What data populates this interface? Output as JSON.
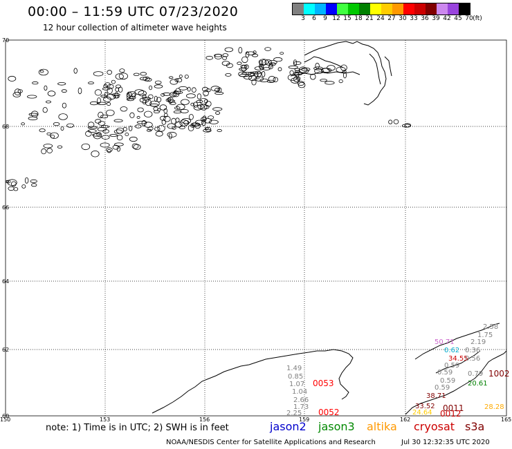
{
  "header": {
    "title": "00:00 – 11:59 UTC 07/23/2020",
    "subtitle": "12 hour collection of altimeter wave heights"
  },
  "legend": {
    "unit": "(ft)",
    "colors": [
      "#808080",
      "#00ffff",
      "#00b4ff",
      "#0000ff",
      "#40ff40",
      "#00c800",
      "#008000",
      "#ffff00",
      "#ffcc00",
      "#ff9900",
      "#ff0000",
      "#cc0000",
      "#800000",
      "#cc88ee",
      "#9944dd",
      "#000000"
    ],
    "labels": [
      "3",
      "6",
      "9",
      "12",
      "15",
      "18",
      "21",
      "24",
      "27",
      "30",
      "33",
      "36",
      "39",
      "42",
      "45",
      "70"
    ]
  },
  "axes": {
    "lat_labels": [
      "70",
      "68",
      "66",
      "64",
      "62",
      "60"
    ],
    "lon_labels": [
      "150",
      "153",
      "156",
      "159",
      "162",
      "165"
    ]
  },
  "observations": [
    {
      "text": "2.58",
      "color": "#808080"
    },
    {
      "text": "1.75",
      "color": "#808080"
    },
    {
      "text": "50.71",
      "color": "#cc66cc"
    },
    {
      "text": "2.19",
      "color": "#808080"
    },
    {
      "text": "0.62",
      "color": "#00aacc"
    },
    {
      "text": "0.36",
      "color": "#808080"
    },
    {
      "text": "34.55",
      "color": "#cc0000"
    },
    {
      "text": "0.59",
      "color": "#808080"
    },
    {
      "text": "0.56",
      "color": "#808080"
    },
    {
      "text": "0.59",
      "color": "#808080"
    },
    {
      "text": "0.79",
      "color": "#808080"
    },
    {
      "text": "1002",
      "color": "#800000"
    },
    {
      "text": "0.59",
      "color": "#808080"
    },
    {
      "text": "20.61",
      "color": "#008000"
    },
    {
      "text": "0.59",
      "color": "#808080"
    },
    {
      "text": "38.71",
      "color": "#800000"
    },
    {
      "text": "1.49",
      "color": "#808080"
    },
    {
      "text": "0.85",
      "color": "#808080"
    },
    {
      "text": "1.07",
      "color": "#808080"
    },
    {
      "text": "0053",
      "color": "#ff0000"
    },
    {
      "text": "1.04",
      "color": "#808080"
    },
    {
      "text": "2.66",
      "color": "#808080"
    },
    {
      "text": "1.73",
      "color": "#808080"
    },
    {
      "text": "2.25",
      "color": "#808080"
    },
    {
      "text": "0052",
      "color": "#ff0000"
    },
    {
      "text": "33.52",
      "color": "#800000"
    },
    {
      "text": "0011",
      "color": "#800000"
    },
    {
      "text": "28.28",
      "color": "#ffaa00"
    },
    {
      "text": "0012",
      "color": "#cc0000"
    },
    {
      "text": "24.64",
      "color": "#ffcc00"
    }
  ],
  "note": "note: 1) Time is in UTC; 2) SWH is in feet",
  "satellites": [
    {
      "name": "jason2",
      "color": "#0000cc"
    },
    {
      "name": "jason3",
      "color": "#008800"
    },
    {
      "name": "altika",
      "color": "#ff9900"
    },
    {
      "name": "cryosat",
      "color": "#cc0000"
    },
    {
      "name": "s3a",
      "color": "#800000"
    }
  ],
  "footer": {
    "credit": "NOAA/NESDIS Center for Satellite Applications and Research",
    "timestamp": "Jul 30 12:32:35 UTC 2020"
  }
}
